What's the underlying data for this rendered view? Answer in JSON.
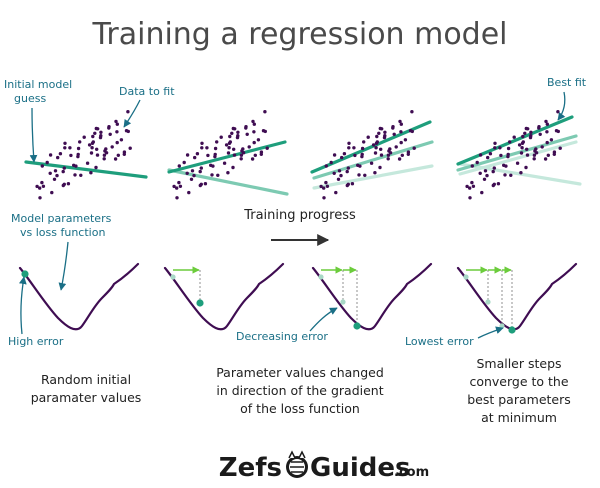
{
  "title": "Training a regression model",
  "annotations": {
    "initial_model_l1": "Initial model",
    "initial_model_l2": "guess",
    "data_to_fit": "Data to fit",
    "best_fit": "Best fit",
    "model_params_l1": "Model parameters",
    "model_params_l2": "vs loss function",
    "training_progress": "Training progress",
    "high_error": "High error",
    "decreasing_error": "Decreasing error",
    "lowest_error": "Lowest error"
  },
  "captions": {
    "c1_l1": "Random initial",
    "c1_l2": "paramater values",
    "c2_l1": "Parameter values changed",
    "c2_l2": "in direction of the gradient",
    "c2_l3": "of the loss function",
    "c3_l1": "Smaller steps",
    "c3_l2": "converge to the",
    "c3_l3": "best parameters",
    "c3_l4": "at minimum"
  },
  "logo": {
    "part1": "Zefs",
    "part2": "Guides",
    "suffix": ".com"
  },
  "colors": {
    "points": "#3f0d52",
    "line_strong": "#1e9e7c",
    "line_mid": "#7dcab2",
    "line_light": "#c5e8dc",
    "curve": "#3f0d52",
    "marker": "#1e9e7c",
    "marker_prev": "#a8d8c6",
    "step_arrow": "#6ccc3c",
    "annotation": "#1a6f86",
    "progress_arrow": "#333333"
  }
}
